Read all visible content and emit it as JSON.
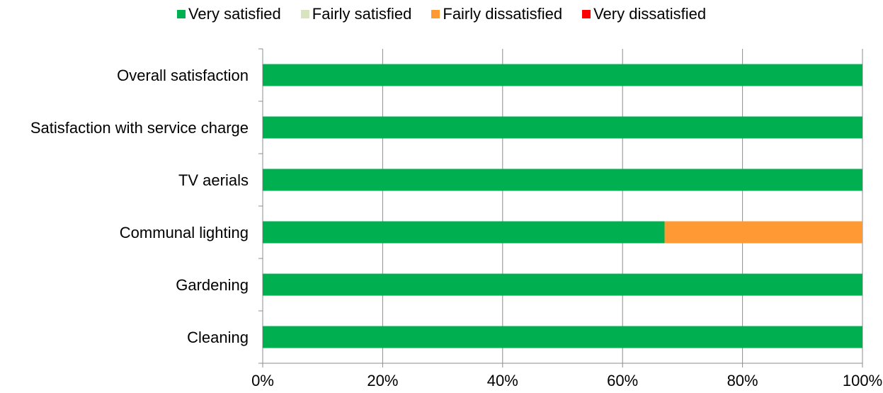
{
  "chart_data": {
    "type": "bar",
    "orientation": "horizontal",
    "stacked": true,
    "percent": true,
    "categories": [
      "Overall satisfaction",
      "Satisfaction with service charge",
      "TV aerials",
      "Communal lighting",
      "Gardening",
      "Cleaning"
    ],
    "series": [
      {
        "name": "Very satisfied",
        "color": "#00b050",
        "values": [
          100,
          100,
          100,
          67,
          100,
          100
        ]
      },
      {
        "name": "Fairly satisfied",
        "color": "#d7e4bd",
        "values": [
          0,
          0,
          0,
          0,
          0,
          0
        ]
      },
      {
        "name": "Fairly dissatisfied",
        "color": "#ff9933",
        "values": [
          0,
          0,
          0,
          33,
          0,
          0
        ]
      },
      {
        "name": "Very dissatisfied",
        "color": "#ff0000",
        "values": [
          0,
          0,
          0,
          0,
          0,
          0
        ]
      }
    ],
    "xlim": [
      0,
      100
    ],
    "x_ticks": [
      "0%",
      "20%",
      "40%",
      "60%",
      "80%",
      "100%"
    ],
    "grid": true,
    "legend_position": "top"
  }
}
